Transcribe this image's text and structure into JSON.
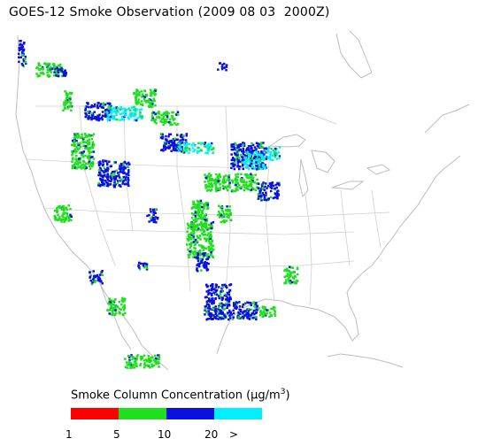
{
  "title": "GOES-12 Smoke Observation (2009 08 03  2000Z)",
  "legend": {
    "title_prefix": "Smoke Column Concentration (",
    "title_unit": "μg/m",
    "title_sup": "3",
    "title_suffix": ")",
    "segments": [
      {
        "name": "red",
        "color": "#ff0000"
      },
      {
        "name": "green",
        "color": "#1ee01e"
      },
      {
        "name": "blue",
        "color": "#0a10e0"
      },
      {
        "name": "cyan",
        "color": "#00f0ff"
      }
    ],
    "ticks": [
      "1",
      "5",
      "10",
      "20",
      ">"
    ]
  },
  "colors": {
    "border": "#c8c8c8",
    "smoke_green": "#1ee01e",
    "smoke_blue": "#0a10e0",
    "smoke_cyan": "#00f0ff"
  }
}
